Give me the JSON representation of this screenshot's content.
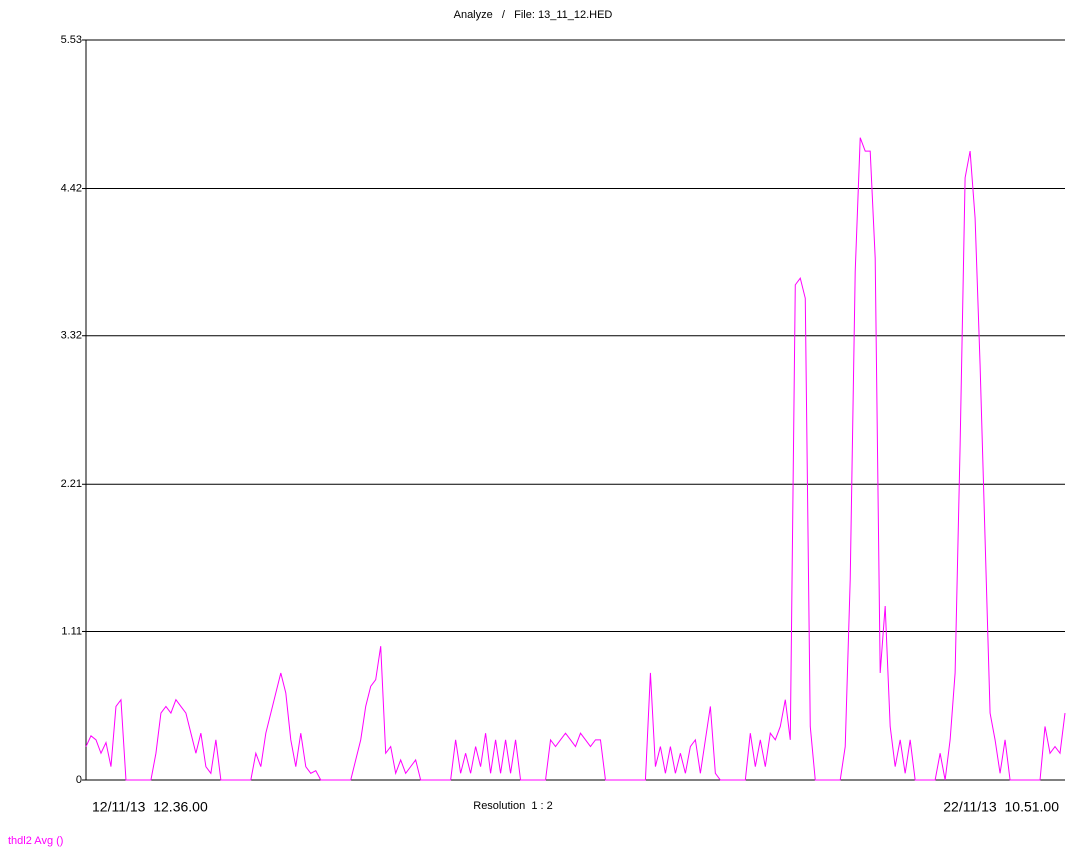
{
  "chart_data": {
    "type": "line",
    "title": "Analyze   /   File: 13_11_12.HED",
    "annotation": "Resolution  1 : 2",
    "categories": [
      "12/11/13  12.36.00",
      null,
      null,
      null,
      null,
      null,
      null,
      null,
      null,
      null,
      null,
      null,
      null,
      null,
      null,
      null,
      null,
      null,
      null,
      null,
      null,
      null,
      null,
      null,
      null,
      null,
      null,
      null,
      null,
      null,
      null,
      null,
      null,
      null,
      null,
      null,
      null,
      null,
      null,
      null,
      null,
      null,
      null,
      null,
      null,
      null,
      null,
      null,
      null,
      null,
      null,
      null,
      null,
      null,
      null,
      null,
      null,
      null,
      null,
      null,
      null,
      null,
      null,
      null,
      null,
      null,
      null,
      null,
      null,
      null,
      null,
      null,
      null,
      null,
      null,
      null,
      null,
      null,
      null,
      null,
      null,
      null,
      null,
      null,
      null,
      null,
      null,
      null,
      null,
      null,
      null,
      null,
      null,
      null,
      null,
      null,
      null,
      null,
      null,
      null,
      null,
      null,
      null,
      null,
      null,
      null,
      null,
      null,
      null,
      null,
      null,
      null,
      null,
      null,
      null,
      null,
      null,
      null,
      null,
      null,
      null,
      null,
      null,
      null,
      null,
      null,
      null,
      null,
      null,
      null,
      null,
      null,
      null,
      null,
      null,
      null,
      null,
      null,
      null,
      null,
      null,
      null,
      null,
      null,
      null,
      null,
      null,
      null,
      null,
      null,
      null,
      null,
      null,
      null,
      null,
      null,
      null,
      null,
      null,
      null,
      null,
      null,
      null,
      null,
      null,
      null,
      null,
      null,
      null,
      null,
      null,
      null,
      null,
      null,
      null,
      null,
      null,
      null,
      null,
      null,
      null,
      null,
      null,
      null,
      null,
      null,
      null,
      null,
      null,
      null,
      null,
      null,
      null,
      null,
      null,
      null,
      "22/11/13  10.51.00"
    ],
    "series": [
      {
        "name": "thdl2 Avg ()",
        "color": "#ff00ff",
        "values": [
          0.25,
          0.33,
          0.3,
          0.2,
          0.28,
          0.1,
          0.55,
          0.6,
          0,
          0,
          0,
          0,
          0,
          0,
          0.2,
          0.5,
          0.55,
          0.5,
          0.6,
          0.55,
          0.5,
          0.35,
          0.2,
          0.35,
          0.1,
          0.05,
          0.3,
          0,
          0,
          0,
          0,
          0,
          0,
          0,
          0.2,
          0.1,
          0.35,
          0.5,
          0.65,
          0.8,
          0.65,
          0.3,
          0.1,
          0.35,
          0.1,
          0.05,
          0.07,
          0,
          0,
          0,
          0,
          0,
          0,
          0,
          0.15,
          0.3,
          0.55,
          0.7,
          0.75,
          1.0,
          0.2,
          0.25,
          0.05,
          0.15,
          0.05,
          0.1,
          0.15,
          0,
          0,
          0,
          0,
          0,
          0,
          0,
          0.3,
          0.05,
          0.2,
          0.05,
          0.25,
          0.1,
          0.35,
          0.05,
          0.3,
          0.05,
          0.3,
          0.05,
          0.3,
          0,
          0,
          0,
          0,
          0,
          0,
          0.3,
          0.25,
          0.3,
          0.35,
          0.3,
          0.25,
          0.35,
          0.3,
          0.25,
          0.3,
          0.3,
          0,
          0,
          0,
          0,
          0,
          0,
          0,
          0,
          0,
          0.8,
          0.1,
          0.25,
          0.05,
          0.25,
          0.05,
          0.2,
          0.05,
          0.25,
          0.3,
          0.05,
          0.3,
          0.55,
          0.05,
          0,
          0,
          0,
          0,
          0,
          0,
          0.35,
          0.1,
          0.3,
          0.1,
          0.35,
          0.3,
          0.4,
          0.6,
          0.3,
          3.7,
          3.75,
          3.6,
          0.4,
          0,
          0,
          0,
          0,
          0,
          0,
          0.25,
          1.5,
          3.8,
          4.8,
          4.7,
          4.7,
          3.9,
          0.8,
          1.3,
          0.4,
          0.1,
          0.3,
          0.05,
          0.3,
          0,
          0,
          0,
          0,
          0,
          0.2,
          0,
          0.3,
          0.8,
          2.5,
          4.5,
          4.7,
          4.2,
          3.1,
          1.8,
          0.5,
          0.3,
          0.05,
          0.3,
          0,
          0,
          0,
          0,
          0,
          0,
          0,
          0.4,
          0.2,
          0.25,
          0.2,
          0.5
        ]
      }
    ],
    "ylim": [
      0,
      5.53
    ],
    "yticks": [
      0,
      1.11,
      2.21,
      3.32,
      4.42,
      5.53
    ],
    "grid": true
  }
}
